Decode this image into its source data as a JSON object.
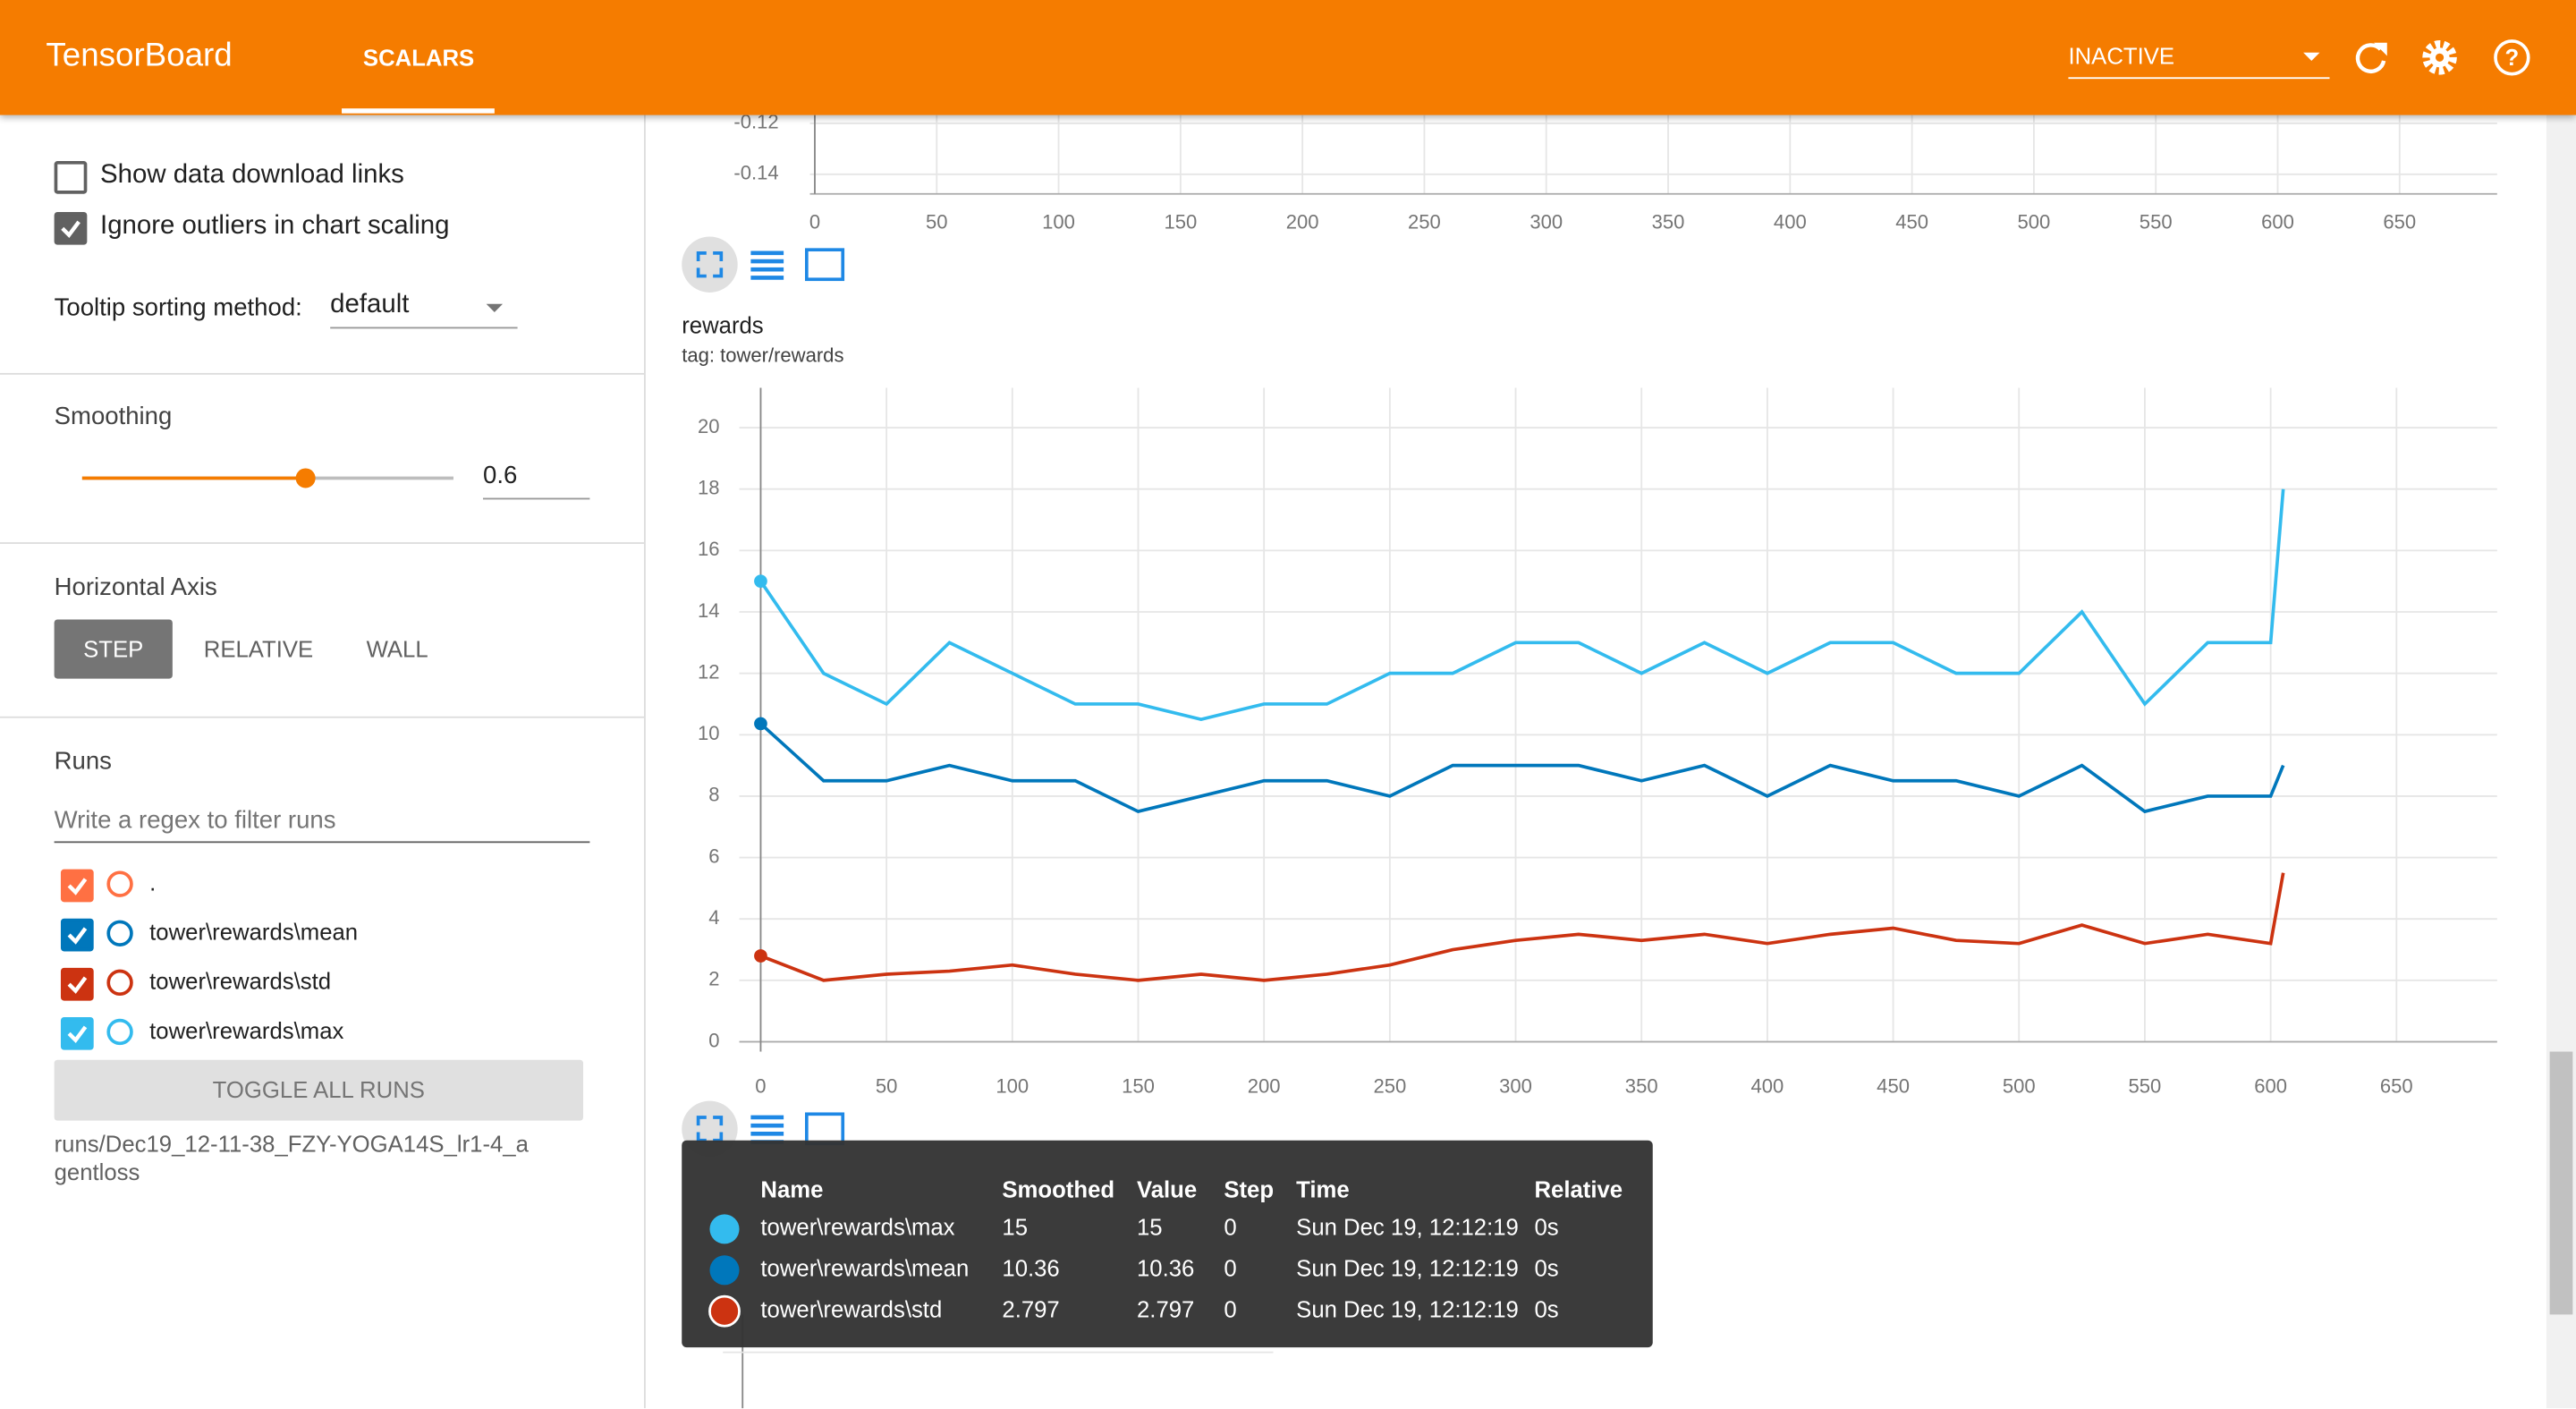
{
  "header": {
    "title": "TensorBoard",
    "tabs": [
      "SCALARS"
    ],
    "status": "INACTIVE"
  },
  "sidebar": {
    "checkboxes": [
      {
        "label": "Show data download links",
        "checked": false
      },
      {
        "label": "Ignore outliers in chart scaling",
        "checked": true
      }
    ],
    "tooltip_sorting": {
      "label": "Tooltip sorting method:",
      "value": "default"
    },
    "smoothing": {
      "label": "Smoothing",
      "value": 0.6
    },
    "horizontal_axis": {
      "label": "Horizontal Axis",
      "options": [
        "STEP",
        "RELATIVE",
        "WALL"
      ],
      "selected": "STEP"
    },
    "runs": {
      "label": "Runs",
      "filter_placeholder": "Write a regex to filter runs",
      "items": [
        {
          "name": ".",
          "color": "#ff7043",
          "checked": true
        },
        {
          "name": "tower\\rewards\\mean",
          "color": "#0077bb",
          "checked": true
        },
        {
          "name": "tower\\rewards\\std",
          "color": "#cc3311",
          "checked": true
        },
        {
          "name": "tower\\rewards\\max",
          "color": "#33bbee",
          "checked": true
        }
      ],
      "toggle": "TOGGLE ALL RUNS",
      "path": "runs/Dec19_12-11-38_FZY-YOGA14S_lr1-4_agentloss"
    }
  },
  "top_chart": {
    "xlim": [
      -2,
      690
    ],
    "ylim": [
      -0.1477,
      -0.1135
    ],
    "xticks": [
      0,
      50,
      100,
      150,
      200,
      250,
      300,
      350,
      400,
      450,
      500,
      550,
      600,
      650
    ],
    "yticks": [
      -0.12,
      -0.14
    ]
  },
  "chart_data": {
    "type": "line",
    "title": "rewards",
    "subtitle": "tag: tower/rewards",
    "x": [
      0,
      25,
      50,
      75,
      100,
      125,
      150,
      175,
      200,
      225,
      250,
      275,
      300,
      325,
      350,
      375,
      400,
      425,
      450,
      475,
      500,
      525,
      550,
      575,
      600,
      605
    ],
    "series": [
      {
        "name": "tower\\rewards\\max",
        "color": "#33bbee",
        "values": [
          15,
          12,
          11,
          13,
          12,
          11,
          11,
          10.5,
          11,
          11,
          12,
          12,
          13,
          13,
          12,
          13,
          12,
          13,
          13,
          12,
          12,
          14,
          11,
          13,
          13,
          18
        ]
      },
      {
        "name": "tower\\rewards\\mean",
        "color": "#0077bb",
        "values": [
          10.36,
          8.5,
          8.5,
          9,
          8.5,
          8.5,
          7.5,
          8,
          8.5,
          8.5,
          8,
          9,
          9,
          9,
          8.5,
          9,
          8,
          9,
          8.5,
          8.5,
          8,
          9,
          7.5,
          8,
          8,
          9
        ]
      },
      {
        "name": "tower\\rewards\\std",
        "color": "#cc3311",
        "values": [
          2.797,
          2,
          2.2,
          2.3,
          2.5,
          2.2,
          2,
          2.2,
          2,
          2.2,
          2.5,
          3,
          3.3,
          3.5,
          3.3,
          3.5,
          3.2,
          3.5,
          3.7,
          3.3,
          3.2,
          3.8,
          3.2,
          3.5,
          3.2,
          5.5
        ]
      }
    ],
    "xlim": [
      -8.5,
      690
    ],
    "ylim": [
      0,
      21.3
    ],
    "xticks": [
      0,
      50,
      100,
      150,
      200,
      250,
      300,
      350,
      400,
      450,
      500,
      550,
      600,
      650
    ],
    "yticks": [
      0,
      2,
      4,
      6,
      8,
      10,
      12,
      14,
      16,
      18,
      20
    ],
    "grid": true
  },
  "tooltip": {
    "columns": [
      "Name",
      "Smoothed",
      "Value",
      "Step",
      "Time",
      "Relative"
    ],
    "rows": [
      {
        "color": "#33bbee",
        "cells": [
          "tower\\rewards\\max",
          15,
          15,
          0,
          "Sun Dec 19, 12:12:19",
          "0s"
        ]
      },
      {
        "color": "#0077bb",
        "cells": [
          "tower\\rewards\\mean",
          10.36,
          10.36,
          0,
          "Sun Dec 19, 12:12:19",
          "0s"
        ]
      },
      {
        "color": "#cc3311",
        "cells": [
          "tower\\rewards\\std",
          2.797,
          2.797,
          0,
          "Sun Dec 19, 12:12:19",
          "0s"
        ]
      }
    ]
  }
}
